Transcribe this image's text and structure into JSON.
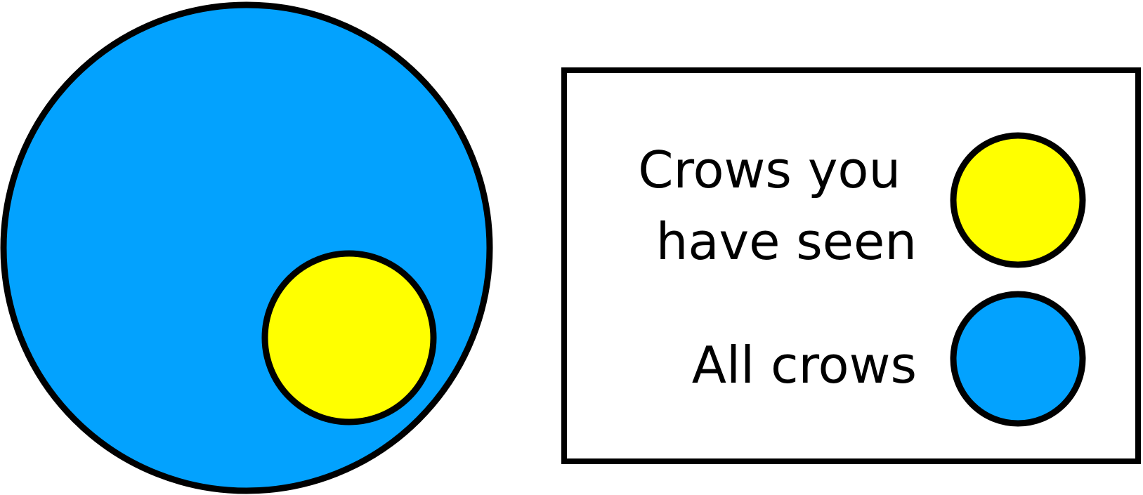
{
  "colors": {
    "all_crows": "#03A2FE",
    "seen_crows": "#FFFF00",
    "outline": "#000000",
    "background": "#FFFFFF"
  },
  "legend": {
    "items": [
      {
        "label_lines": [
          "Crows you",
          "have seen"
        ],
        "color_key": "seen_crows",
        "icon": "yellow-circle-swatch"
      },
      {
        "label_lines": [
          "All crows"
        ],
        "color_key": "all_crows",
        "icon": "blue-circle-swatch"
      }
    ]
  }
}
